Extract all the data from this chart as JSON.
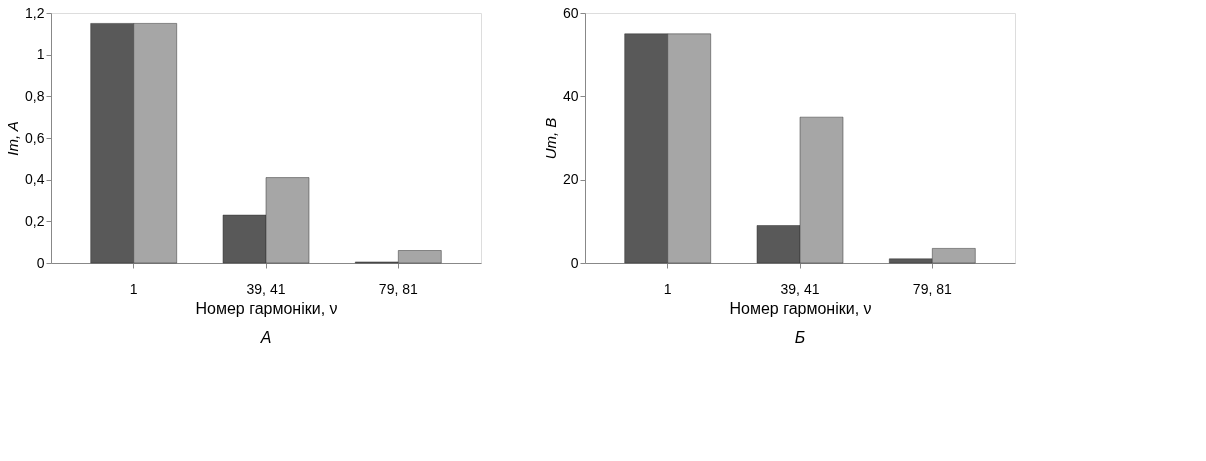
{
  "chart_data": [
    {
      "type": "bar",
      "categories": [
        "1",
        "39, 41",
        "79, 81"
      ],
      "xlabel": "Номер гармоніки, ν",
      "ylabel": "Im, A",
      "series": [
        {
          "color": "#595959",
          "values": [
            1.15,
            0.23,
            0.005
          ]
        },
        {
          "color": "#a6a6a6",
          "values": [
            1.15,
            0.41,
            0.06
          ]
        }
      ],
      "ylim": [
        0,
        1.2
      ],
      "yticks": [
        0,
        {
          "value": 0.2,
          "label": "0,2"
        },
        {
          "value": 0.4,
          "label": "0,4"
        },
        {
          "value": 0.6,
          "label": "0,6"
        },
        {
          "value": 0.8,
          "label": "0,8"
        },
        1,
        {
          "value": 1.2,
          "label": "1,2"
        }
      ],
      "grid": false,
      "legend": false,
      "annotations": [
        "А"
      ]
    },
    {
      "type": "bar",
      "categories": [
        "1",
        "39, 41",
        "79, 81"
      ],
      "xlabel": "Номер гармоніки, ν",
      "ylabel": "Um, В",
      "series": [
        {
          "color": "#595959",
          "values": [
            55,
            9,
            1
          ]
        },
        {
          "color": "#a6a6a6",
          "values": [
            55,
            35,
            3.5
          ]
        }
      ],
      "ylim": [
        0,
        60
      ],
      "yticks": [
        0,
        20,
        40,
        60
      ],
      "grid": false,
      "legend": false,
      "annotations": [
        "Б"
      ]
    }
  ]
}
